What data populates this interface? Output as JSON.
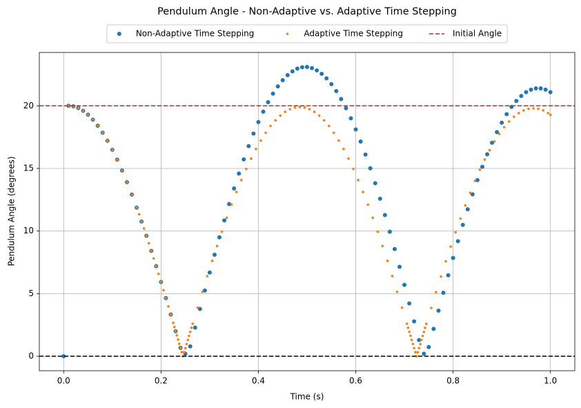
{
  "chart_data": {
    "type": "scatter",
    "title": "Pendulum Angle - Non-Adaptive vs. Adaptive Time Stepping",
    "xlabel": "Time (s)",
    "ylabel": "Pendulum Angle (degrees)",
    "xlim": [
      -0.05,
      1.05
    ],
    "ylim": [
      -1.155,
      24.26
    ],
    "xticks": [
      {
        "value": 0,
        "label": "0.0"
      },
      0.2,
      0.4,
      0.6,
      0.8,
      {
        "value": 1,
        "label": "1.0"
      }
    ],
    "yticks": [
      0,
      5,
      10,
      15,
      20
    ],
    "grid": true,
    "legend_position": "upper center",
    "series": [
      {
        "name": "Non-Adaptive Time Stepping",
        "color": "#1f77b4",
        "marker_size": 3,
        "x": [
          0,
          0.01,
          0.02,
          0.03,
          0.04,
          0.05,
          0.06,
          0.07,
          0.08,
          0.09,
          0.1,
          0.11,
          0.12,
          0.13,
          0.14,
          0.15,
          0.16,
          0.17,
          0.18,
          0.19,
          0.2,
          0.21,
          0.22,
          0.23,
          0.24,
          0.25,
          0.26,
          0.27,
          0.28,
          0.29,
          0.3,
          0.31,
          0.32,
          0.33,
          0.34,
          0.35,
          0.36,
          0.37,
          0.38,
          0.39,
          0.4,
          0.41,
          0.42,
          0.43,
          0.44,
          0.45,
          0.46,
          0.47,
          0.48,
          0.49,
          0.5,
          0.51,
          0.52,
          0.53,
          0.54,
          0.55,
          0.56,
          0.57,
          0.58,
          0.59,
          0.6,
          0.61,
          0.62,
          0.63,
          0.64,
          0.65,
          0.66,
          0.67,
          0.68,
          0.69,
          0.7,
          0.71,
          0.72,
          0.73,
          0.74,
          0.75,
          0.76,
          0.77,
          0.78,
          0.79,
          0.8,
          0.81,
          0.82,
          0.83,
          0.84,
          0.85,
          0.86,
          0.87,
          0.88,
          0.89,
          0.9,
          0.91,
          0.92,
          0.93,
          0.94,
          0.95,
          0.96,
          0.97,
          0.98,
          0.99,
          1
        ],
        "values": [
          0,
          20.0,
          19.96,
          19.82,
          19.6,
          19.29,
          18.89,
          18.41,
          17.85,
          17.21,
          16.49,
          15.7,
          14.83,
          13.9,
          12.91,
          11.87,
          10.76,
          9.62,
          8.42,
          7.2,
          5.93,
          4.64,
          3.33,
          2.0,
          0.67,
          0.2,
          0.79,
          2.29,
          3.78,
          5.25,
          6.69,
          8.11,
          9.5,
          10.85,
          12.15,
          13.4,
          14.59,
          15.72,
          16.78,
          17.78,
          18.7,
          19.53,
          20.29,
          20.97,
          21.55,
          22.05,
          22.45,
          22.75,
          22.97,
          23.08,
          23.1,
          23.01,
          22.83,
          22.56,
          22.19,
          21.73,
          21.18,
          20.54,
          19.81,
          19.0,
          18.11,
          17.15,
          16.11,
          15.01,
          13.82,
          12.58,
          11.28,
          9.95,
          8.56,
          7.14,
          5.7,
          4.22,
          2.79,
          1.3,
          0.2,
          0.73,
          2.19,
          3.64,
          5.07,
          6.47,
          7.85,
          9.19,
          10.49,
          11.74,
          12.93,
          14.07,
          15.13,
          16.13,
          17.05,
          17.9,
          18.65,
          19.33,
          19.91,
          20.39,
          20.79,
          21.09,
          21.29,
          21.39,
          21.39,
          21.29,
          21.09
        ]
      },
      {
        "name": "Adaptive Time Stepping",
        "color": "#ff7f0e",
        "marker_size": 1.8,
        "x": [
          0.01,
          0.02,
          0.03,
          0.04,
          0.05,
          0.06,
          0.07,
          0.08,
          0.09,
          0.1,
          0.11,
          0.12,
          0.13,
          0.14,
          0.15,
          0.155,
          0.16,
          0.165,
          0.17,
          0.175,
          0.18,
          0.185,
          0.19,
          0.195,
          0.2,
          0.205,
          0.21,
          0.215,
          0.22,
          0.225,
          0.2275,
          0.23,
          0.2325,
          0.235,
          0.2375,
          0.24,
          0.2425,
          0.245,
          0.2475,
          0.25,
          0.2525,
          0.255,
          0.2575,
          0.26,
          0.2625,
          0.265,
          0.275,
          0.285,
          0.295,
          0.305,
          0.315,
          0.325,
          0.335,
          0.345,
          0.355,
          0.365,
          0.375,
          0.385,
          0.395,
          0.405,
          0.415,
          0.425,
          0.435,
          0.445,
          0.455,
          0.465,
          0.475,
          0.485,
          0.495,
          0.505,
          0.515,
          0.525,
          0.535,
          0.545,
          0.555,
          0.565,
          0.575,
          0.585,
          0.595,
          0.605,
          0.615,
          0.625,
          0.635,
          0.645,
          0.655,
          0.665,
          0.675,
          0.685,
          0.695,
          0.705,
          0.7075,
          0.71,
          0.7125,
          0.715,
          0.7175,
          0.72,
          0.7225,
          0.725,
          0.7275,
          0.73,
          0.7325,
          0.735,
          0.7375,
          0.74,
          0.7425,
          0.745,
          0.755,
          0.765,
          0.775,
          0.785,
          0.795,
          0.805,
          0.815,
          0.825,
          0.835,
          0.845,
          0.855,
          0.865,
          0.875,
          0.885,
          0.895,
          0.905,
          0.915,
          0.925,
          0.935,
          0.945,
          0.955,
          0.965,
          0.975,
          0.985,
          0.995,
          1
        ],
        "values": [
          20.0,
          19.96,
          19.82,
          19.6,
          19.29,
          18.89,
          18.41,
          17.85,
          17.21,
          16.49,
          15.7,
          14.83,
          13.9,
          12.91,
          11.87,
          11.34,
          10.76,
          10.2,
          9.62,
          9.03,
          8.42,
          7.81,
          7.2,
          6.58,
          5.93,
          5.28,
          4.64,
          3.99,
          3.33,
          2.67,
          2.34,
          2.01,
          1.67,
          1.34,
          1.0,
          0.67,
          0.33,
          0.0,
          0.33,
          0.65,
          0.98,
          1.3,
          1.63,
          1.95,
          2.28,
          2.6,
          3.88,
          5.15,
          6.4,
          7.62,
          8.8,
          9.95,
          11.06,
          12.11,
          13.12,
          14.07,
          14.96,
          15.79,
          16.55,
          17.23,
          17.85,
          18.39,
          18.84,
          19.22,
          19.52,
          19.73,
          19.86,
          19.9,
          19.86,
          19.73,
          19.52,
          19.22,
          18.84,
          18.39,
          17.85,
          17.23,
          16.55,
          15.79,
          14.96,
          14.07,
          13.12,
          12.11,
          11.06,
          9.95,
          8.8,
          7.62,
          6.4,
          5.15,
          3.88,
          2.6,
          2.28,
          1.95,
          1.63,
          1.3,
          0.98,
          0.65,
          0.33,
          0.0,
          0.32,
          0.65,
          0.97,
          1.3,
          1.62,
          1.94,
          2.27,
          2.59,
          3.86,
          5.12,
          6.37,
          7.58,
          8.76,
          9.9,
          11.0,
          12.05,
          13.05,
          14.0,
          14.89,
          15.71,
          16.46,
          17.15,
          17.76,
          18.29,
          18.75,
          19.13,
          19.42,
          19.63,
          19.76,
          19.8,
          19.76,
          19.63,
          19.42,
          19.28
        ]
      }
    ],
    "reference_lines": [
      {
        "name": "Initial Angle",
        "y": 20,
        "color": "#e41a1c",
        "style": "dashed"
      },
      {
        "y": 0,
        "color": "#000000",
        "style": "dashed"
      }
    ]
  }
}
